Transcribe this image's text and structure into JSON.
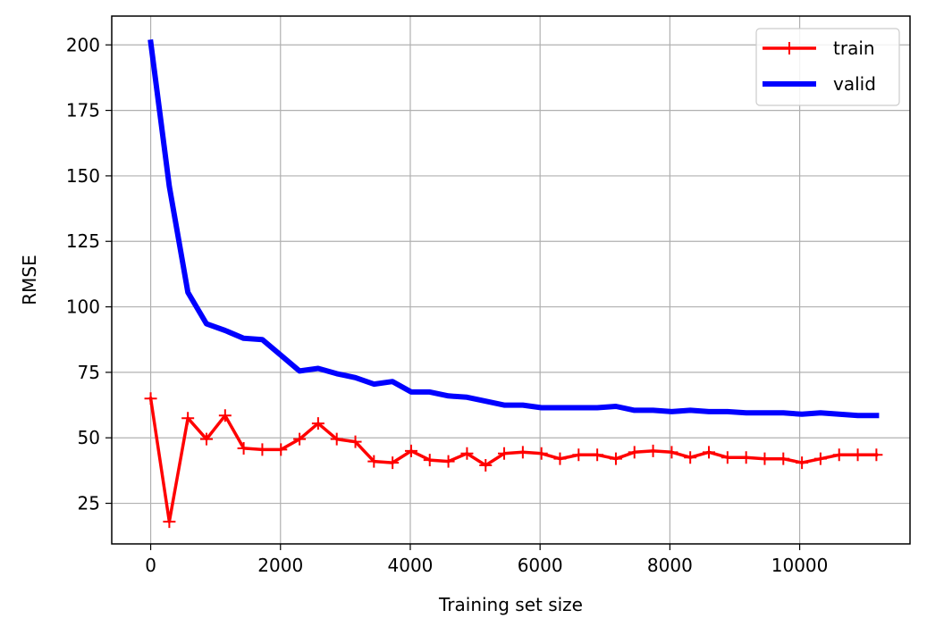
{
  "chart_data": {
    "type": "line",
    "xlabel": "Training set size",
    "ylabel": "RMSE",
    "xlim": [
      -600,
      11700
    ],
    "ylim": [
      9.5,
      211
    ],
    "xticks": [
      0,
      2000,
      4000,
      6000,
      8000,
      10000
    ],
    "yticks": [
      25,
      50,
      75,
      100,
      125,
      150,
      175,
      200
    ],
    "grid": true,
    "legend_position": "top-right",
    "series": [
      {
        "name": "train",
        "color": "#ff0000",
        "marker": "plus",
        "x": [
          0,
          287,
          573,
          860,
          1147,
          1433,
          1720,
          2007,
          2294,
          2580,
          2867,
          3154,
          3440,
          3727,
          4014,
          4300,
          4587,
          4874,
          5161,
          5447,
          5734,
          6021,
          6307,
          6594,
          6881,
          7168,
          7454,
          7741,
          8028,
          8314,
          8601,
          8888,
          9175,
          9461,
          9748,
          10035,
          10321,
          10608,
          10895,
          11182
        ],
        "y": [
          65,
          18,
          57.5,
          49.5,
          58.5,
          46,
          45.5,
          45.5,
          49.5,
          55.5,
          49.5,
          48.5,
          41,
          40.5,
          45,
          41.5,
          41,
          44,
          39.5,
          44,
          44.5,
          44,
          42,
          43.5,
          43.5,
          42,
          44.5,
          45,
          44.5,
          42.5,
          44.5,
          42.5,
          42.5,
          42,
          42,
          40.5,
          42,
          43.5,
          43.5,
          43.5
        ]
      },
      {
        "name": "valid",
        "color": "#0000ff",
        "marker": "none",
        "x": [
          0,
          287,
          573,
          860,
          1147,
          1433,
          1720,
          2007,
          2294,
          2580,
          2867,
          3154,
          3440,
          3727,
          4014,
          4300,
          4587,
          4874,
          5161,
          5447,
          5734,
          6021,
          6307,
          6594,
          6881,
          7168,
          7454,
          7741,
          8028,
          8314,
          8601,
          8888,
          9175,
          9461,
          9748,
          10035,
          10321,
          10608,
          10895,
          11182
        ],
        "y": [
          201,
          146,
          105.5,
          93.5,
          91,
          88,
          87.5,
          81.5,
          75.5,
          76.5,
          74.5,
          73,
          70.5,
          71.5,
          67.5,
          67.5,
          66,
          65.5,
          64,
          62.5,
          62.5,
          61.5,
          61.5,
          61.5,
          61.5,
          62,
          60.5,
          60.5,
          60,
          60.5,
          60,
          60,
          59.5,
          59.5,
          59.5,
          59,
          59.5,
          59,
          58.5,
          58.5
        ]
      }
    ]
  }
}
